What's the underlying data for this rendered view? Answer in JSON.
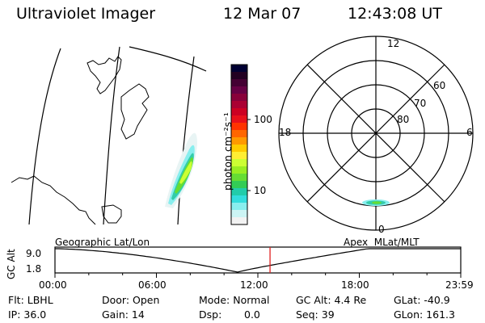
{
  "header": {
    "title": "Ultraviolet Imager",
    "date": "12 Mar 07",
    "time": "12:43:08 UT"
  },
  "colorbar": {
    "unit_label": "photon cm⁻²s⁻¹",
    "tick_labels": [
      "100",
      "10"
    ],
    "colors": [
      "#000033",
      "#220022",
      "#440033",
      "#660044",
      "#88003a",
      "#aa0033",
      "#cc0022",
      "#e8101a",
      "#ff3300",
      "#ff6600",
      "#ff9900",
      "#ffcc00",
      "#ffee33",
      "#ccff33",
      "#99ee22",
      "#66dd33",
      "#33cc55",
      "#22ccaa",
      "#33dddd",
      "#88eeee",
      "#ccf4f4",
      "#f2f2f2"
    ]
  },
  "polar_plot": {
    "mlt_labels": {
      "top": "12",
      "left": "18",
      "right": "6",
      "bottom": "0"
    },
    "lat_labels": [
      "60",
      "70",
      "80"
    ]
  },
  "timeline": {
    "ylabel": "GC Alt",
    "ytick_top": "9.0",
    "ytick_bottom": "1.8",
    "left_title": "Geographic Lat/Lon",
    "right_title": "Apex  MLat/MLT",
    "xticks": [
      "00:00",
      "06:00",
      "12:00",
      "18:00",
      "23:59"
    ],
    "current_hours": 12.72,
    "minimum_hours": 10.8
  },
  "status": {
    "filter": "Flt: LBHL",
    "ip": "IP: 36.0",
    "door": "Door: Open",
    "gain": "Gain: 14",
    "mode": "Mode: Normal",
    "dsp_label": "Dsp:",
    "dsp_value": "0.0",
    "gc_alt": "GC Alt: 4.4 Re",
    "seq": "Seq: 39",
    "glat": "GLat: -40.9",
    "glon": "GLon: 161.3"
  }
}
